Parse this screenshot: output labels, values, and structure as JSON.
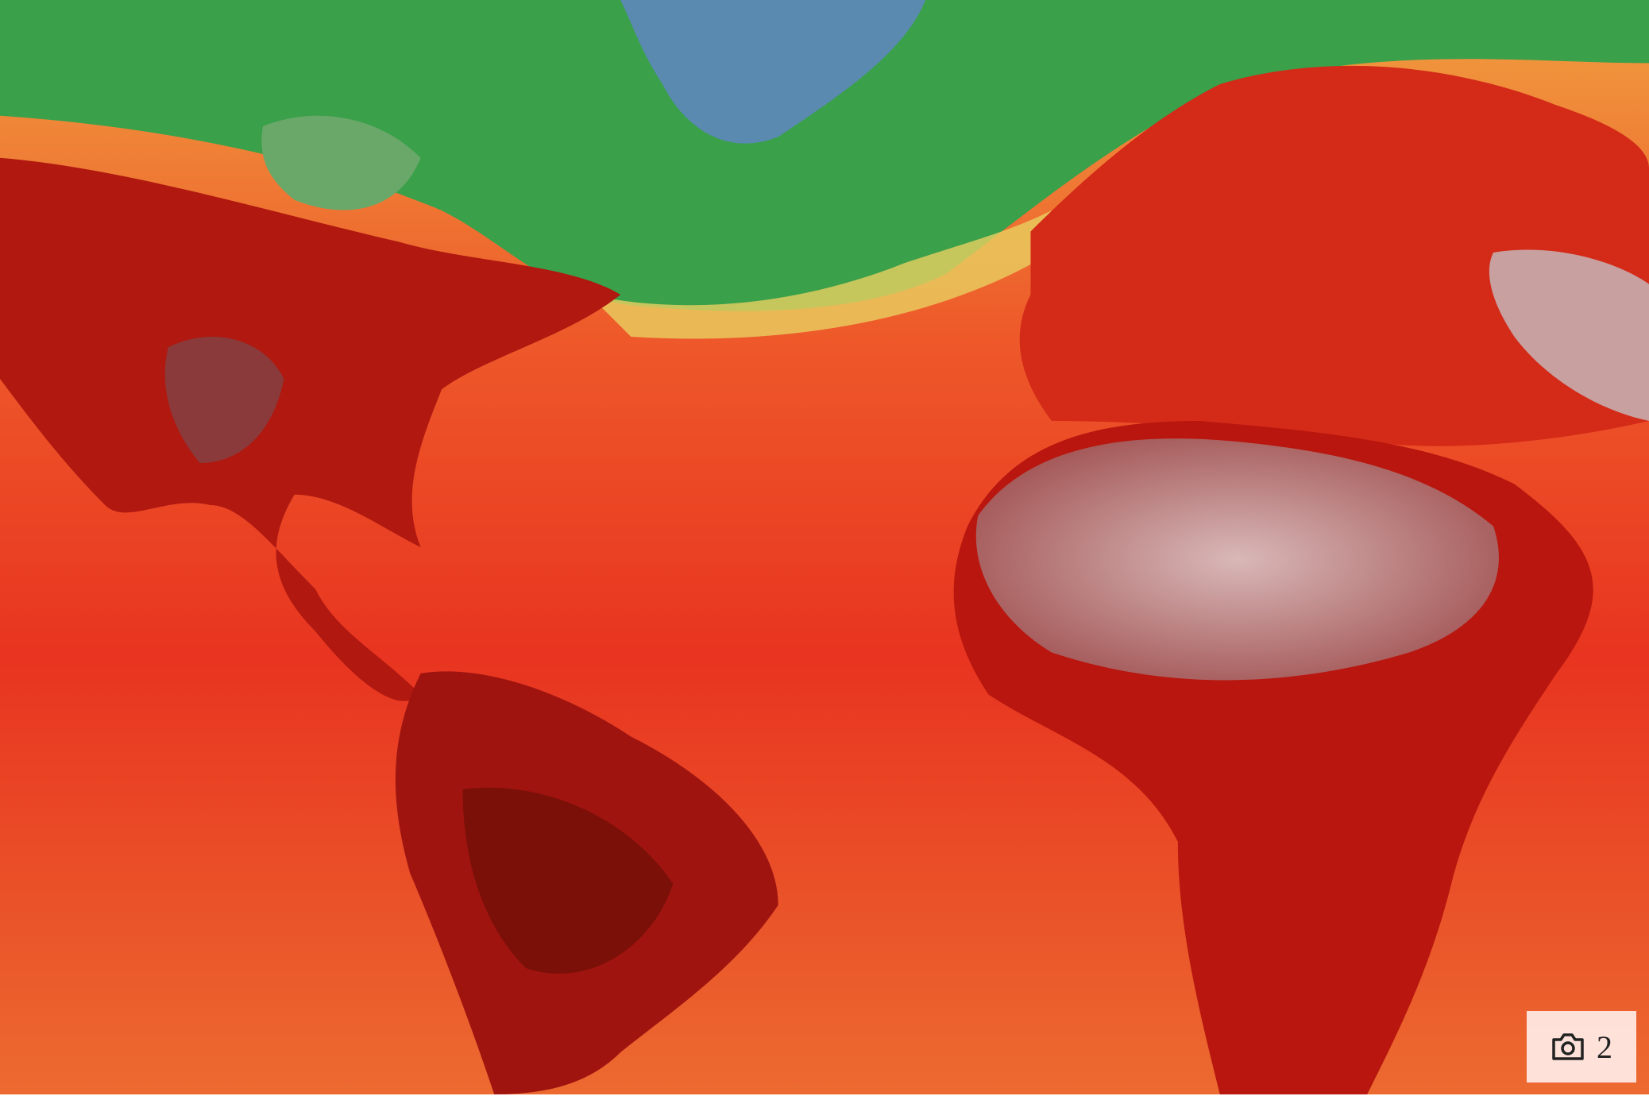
{
  "photo_badge": {
    "count": 2
  }
}
